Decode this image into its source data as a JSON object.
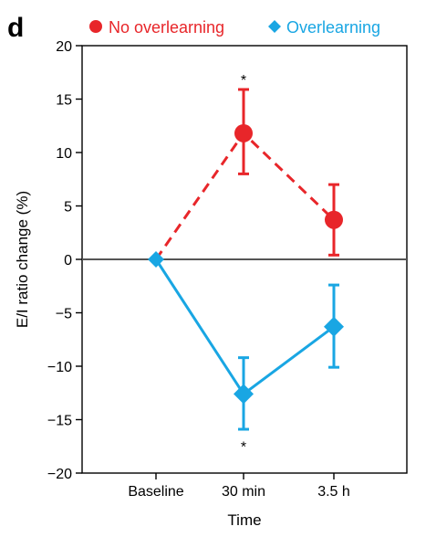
{
  "panel_label": "d",
  "chart_data": {
    "type": "line",
    "title": "",
    "xlabel": "Time",
    "ylabel": "E/I ratio change (%)",
    "categories": [
      "Baseline",
      "30 min",
      "3.5 h"
    ],
    "ylim": [
      -20,
      20
    ],
    "yticks": [
      20,
      15,
      10,
      5,
      0,
      -5,
      -10,
      -15,
      -20
    ],
    "ytick_labels": [
      "20",
      "15",
      "10",
      "5",
      "0",
      "−5",
      "−10",
      "−15",
      "−20"
    ],
    "grid": false,
    "zero_line": true,
    "legend_position": "top",
    "series": [
      {
        "name": "No overlearning",
        "color": "#e8262a",
        "marker": "circle",
        "line_style": "dashed",
        "values": [
          0,
          11.8,
          3.7
        ],
        "err_high": [
          null,
          15.9,
          7.0
        ],
        "err_low": [
          null,
          8.0,
          0.4
        ]
      },
      {
        "name": "Overlearning",
        "color": "#19a6e3",
        "marker": "diamond",
        "line_style": "solid",
        "values": [
          0,
          -12.6,
          -6.3
        ],
        "err_high": [
          null,
          -9.2,
          -2.4
        ],
        "err_low": [
          null,
          -15.9,
          -10.1
        ]
      }
    ],
    "annotations": [
      {
        "text": "*",
        "category": "30 min",
        "y": 17.0
      },
      {
        "text": "*",
        "category": "30 min",
        "y": -17.3
      }
    ]
  }
}
